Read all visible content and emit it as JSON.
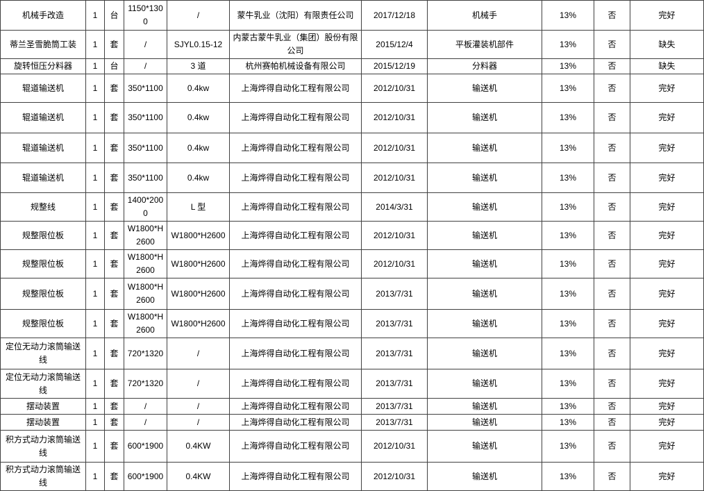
{
  "table": {
    "rows": [
      {
        "name": "机械手改造",
        "qty": "1",
        "unit": "台",
        "spec": "1150*1300",
        "model": "/",
        "manufacturer": "蒙牛乳业（沈阳）有限责任公司",
        "date": "2017/12/18",
        "category": "机械手",
        "rate": "13%",
        "flag": "否",
        "status": "完好"
      },
      {
        "name": "蒂兰圣雪脆筒工装",
        "qty": "1",
        "unit": "套",
        "spec": "/",
        "model": "SJYL0.15-12",
        "manufacturer": "内蒙古蒙牛乳业（集团）股份有限公司",
        "date": "2015/12/4",
        "category": "平板灌装机部件",
        "rate": "13%",
        "flag": "否",
        "status": "缺失"
      },
      {
        "name": "旋转恒压分料器",
        "qty": "1",
        "unit": "台",
        "spec": "/",
        "model": "3 道",
        "manufacturer": "杭州赛帕机械设备有限公司",
        "date": "2015/12/19",
        "category": "分料器",
        "rate": "13%",
        "flag": "否",
        "status": "缺失"
      },
      {
        "name": "辊道输送机",
        "qty": "1",
        "unit": "套",
        "spec": "350*1100",
        "model": "0.4kw",
        "manufacturer": "上海烨得自动化工程有限公司",
        "date": "2012/10/31",
        "category": "输送机",
        "rate": "13%",
        "flag": "否",
        "status": "完好"
      },
      {
        "name": "辊道输送机",
        "qty": "1",
        "unit": "套",
        "spec": "350*1100",
        "model": "0.4kw",
        "manufacturer": "上海烨得自动化工程有限公司",
        "date": "2012/10/31",
        "category": "输送机",
        "rate": "13%",
        "flag": "否",
        "status": "完好"
      },
      {
        "name": "辊道输送机",
        "qty": "1",
        "unit": "套",
        "spec": "350*1100",
        "model": "0.4kw",
        "manufacturer": "上海烨得自动化工程有限公司",
        "date": "2012/10/31",
        "category": "输送机",
        "rate": "13%",
        "flag": "否",
        "status": "完好"
      },
      {
        "name": "辊道输送机",
        "qty": "1",
        "unit": "套",
        "spec": "350*1100",
        "model": "0.4kw",
        "manufacturer": "上海烨得自动化工程有限公司",
        "date": "2012/10/31",
        "category": "输送机",
        "rate": "13%",
        "flag": "否",
        "status": "完好"
      },
      {
        "name": "规整线",
        "qty": "1",
        "unit": "套",
        "spec": "1400*2000",
        "model": "L 型",
        "manufacturer": "上海烨得自动化工程有限公司",
        "date": "2014/3/31",
        "category": "输送机",
        "rate": "13%",
        "flag": "否",
        "status": "完好"
      },
      {
        "name": "规整限位板",
        "qty": "1",
        "unit": "套",
        "spec": "W1800*H2600",
        "model": "W1800*H2600",
        "manufacturer": "上海烨得自动化工程有限公司",
        "date": "2012/10/31",
        "category": "输送机",
        "rate": "13%",
        "flag": "否",
        "status": "完好"
      },
      {
        "name": "规整限位板",
        "qty": "1",
        "unit": "套",
        "spec": "W1800*H2600",
        "model": "W1800*H2600",
        "manufacturer": "上海烨得自动化工程有限公司",
        "date": "2012/10/31",
        "category": "输送机",
        "rate": "13%",
        "flag": "否",
        "status": "完好"
      },
      {
        "name": "规整限位板",
        "qty": "1",
        "unit": "套",
        "spec": "W1800*H2600",
        "model": "W1800*H2600",
        "manufacturer": "上海烨得自动化工程有限公司",
        "date": "2013/7/31",
        "category": "输送机",
        "rate": "13%",
        "flag": "否",
        "status": "完好"
      },
      {
        "name": "规整限位板",
        "qty": "1",
        "unit": "套",
        "spec": "W1800*H2600",
        "model": "W1800*H2600",
        "manufacturer": "上海烨得自动化工程有限公司",
        "date": "2013/7/31",
        "category": "输送机",
        "rate": "13%",
        "flag": "否",
        "status": "完好"
      },
      {
        "name": "定位无动力滚筒输送线",
        "qty": "1",
        "unit": "套",
        "spec": "720*1320",
        "model": "/",
        "manufacturer": "上海烨得自动化工程有限公司",
        "date": "2013/7/31",
        "category": "输送机",
        "rate": "13%",
        "flag": "否",
        "status": "完好"
      },
      {
        "name": "定位无动力滚筒输送线",
        "qty": "1",
        "unit": "套",
        "spec": "720*1320",
        "model": "/",
        "manufacturer": "上海烨得自动化工程有限公司",
        "date": "2013/7/31",
        "category": "输送机",
        "rate": "13%",
        "flag": "否",
        "status": "完好"
      },
      {
        "name": "摆动装置",
        "qty": "1",
        "unit": "套",
        "spec": "/",
        "model": "/",
        "manufacturer": "上海烨得自动化工程有限公司",
        "date": "2013/7/31",
        "category": "输送机",
        "rate": "13%",
        "flag": "否",
        "status": "完好"
      },
      {
        "name": "摆动装置",
        "qty": "1",
        "unit": "套",
        "spec": "/",
        "model": "/",
        "manufacturer": "上海烨得自动化工程有限公司",
        "date": "2013/7/31",
        "category": "输送机",
        "rate": "13%",
        "flag": "否",
        "status": "完好"
      },
      {
        "name": "积方式动力滚筒输送线",
        "qty": "1",
        "unit": "套",
        "spec": "600*1900",
        "model": "0.4KW",
        "manufacturer": "上海烨得自动化工程有限公司",
        "date": "2012/10/31",
        "category": "输送机",
        "rate": "13%",
        "flag": "否",
        "status": "完好"
      },
      {
        "name": "积方式动力滚筒输送线",
        "qty": "1",
        "unit": "套",
        "spec": "600*1900",
        "model": "0.4KW",
        "manufacturer": "上海烨得自动化工程有限公司",
        "date": "2012/10/31",
        "category": "输送机",
        "rate": "13%",
        "flag": "否",
        "status": "完好"
      }
    ]
  }
}
